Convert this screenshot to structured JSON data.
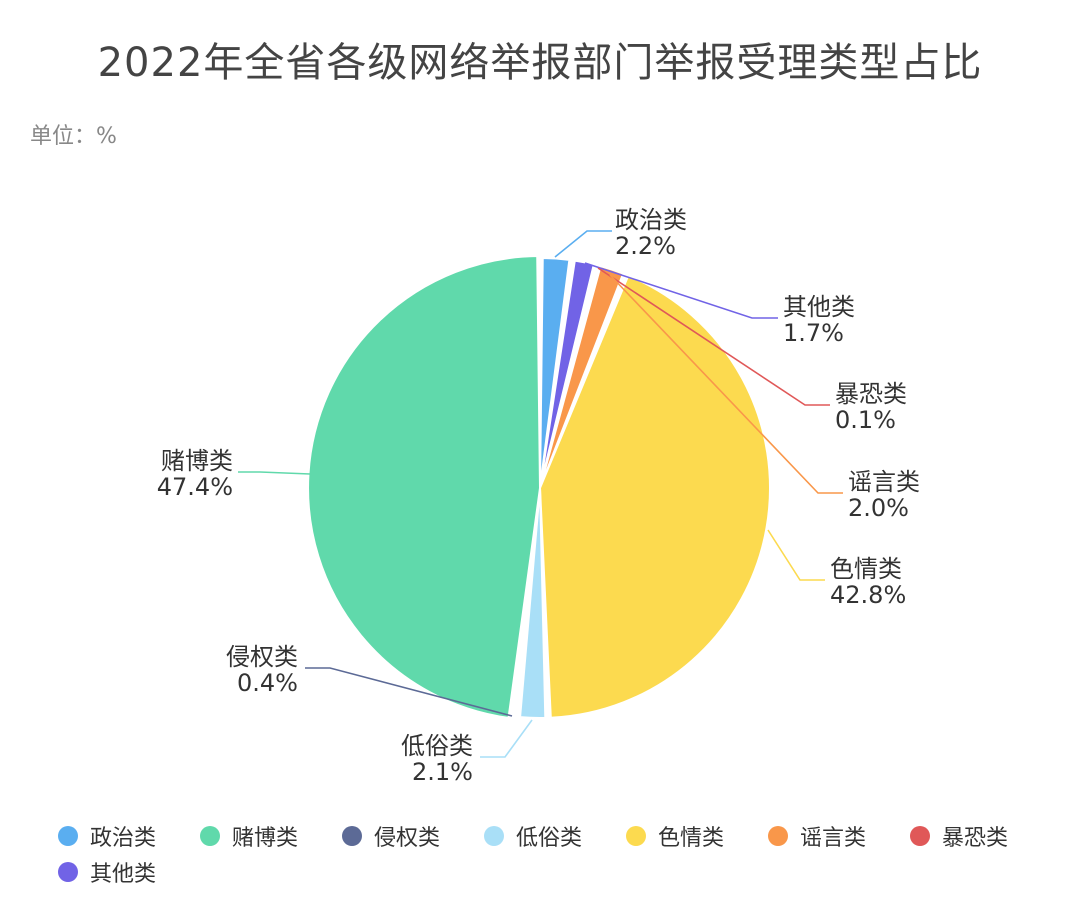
{
  "title": "2022年全省各级网络举报部门举报受理类型占比",
  "unit_label": "单位：%",
  "chart_data": {
    "type": "pie",
    "title": "2022年全省各级网络举报部门举报受理类型占比",
    "unit": "%",
    "legend_position": "bottom",
    "slices": [
      {
        "name": "政治类",
        "value": 2.2,
        "label": "2.2%",
        "color": "#5aaef0"
      },
      {
        "name": "赌博类",
        "value": 47.4,
        "label": "47.4%",
        "color": "#60d9ab"
      },
      {
        "name": "侵权类",
        "value": 0.4,
        "label": "0.4%",
        "color": "#5c6a96"
      },
      {
        "name": "低俗类",
        "value": 2.1,
        "label": "2.1%",
        "color": "#a9dff7"
      },
      {
        "name": "色情类",
        "value": 42.8,
        "label": "42.8%",
        "color": "#fcda4f"
      },
      {
        "name": "谣言类",
        "value": 2.0,
        "label": "2.0%",
        "color": "#f9974a"
      },
      {
        "name": "暴恐类",
        "value": 0.1,
        "label": "0.1%",
        "color": "#e05858"
      },
      {
        "name": "其他类",
        "value": 1.7,
        "label": "1.7%",
        "color": "#7163e6"
      }
    ]
  }
}
